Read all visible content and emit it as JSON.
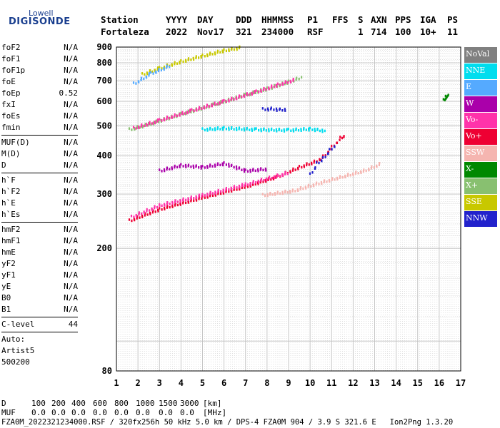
{
  "logo": {
    "line1": "Lowell",
    "line2": "DIGISONDE"
  },
  "header": {
    "labels": [
      "Station",
      "YYYY",
      "DAY",
      "DDD",
      "HHMMSS",
      "P1",
      "FFS",
      "S",
      "AXN",
      "PPS",
      "IGA",
      "PS"
    ],
    "values": [
      "Fortaleza",
      "2022",
      "Nov17",
      "321",
      "234000",
      "RSF",
      "",
      "1",
      "714",
      "100",
      "10+",
      "11"
    ]
  },
  "params": [
    [
      {
        "name": "foF2",
        "val": "N/A"
      },
      {
        "name": "foF1",
        "val": "N/A"
      },
      {
        "name": "foF1p",
        "val": "N/A"
      },
      {
        "name": "foE",
        "val": "N/A"
      },
      {
        "name": "foEp",
        "val": "0.52"
      },
      {
        "name": "fxI",
        "val": "N/A"
      },
      {
        "name": "foEs",
        "val": "N/A"
      },
      {
        "name": "fmin",
        "val": "N/A"
      }
    ],
    [
      {
        "name": "MUF(D)",
        "val": "N/A"
      },
      {
        "name": "M(D)",
        "val": "N/A"
      },
      {
        "name": "D",
        "val": "N/A"
      }
    ],
    [
      {
        "name": "h`F",
        "val": "N/A"
      },
      {
        "name": "h`F2",
        "val": "N/A"
      },
      {
        "name": "h`E",
        "val": "N/A"
      },
      {
        "name": "h`Es",
        "val": "N/A"
      }
    ],
    [
      {
        "name": "hmF2",
        "val": "N/A"
      },
      {
        "name": "hmF1",
        "val": "N/A"
      },
      {
        "name": "hmE",
        "val": "N/A"
      },
      {
        "name": "yF2",
        "val": "N/A"
      },
      {
        "name": "yF1",
        "val": "N/A"
      },
      {
        "name": "yE",
        "val": "N/A"
      },
      {
        "name": "B0",
        "val": "N/A"
      },
      {
        "name": "B1",
        "val": "N/A"
      }
    ],
    [
      {
        "name": "C-level",
        "val": "44"
      }
    ]
  ],
  "auto": {
    "l1": "Auto:",
    "l2": "Artist5",
    "l3": "500200"
  },
  "legend": [
    {
      "label": "NoVal",
      "color": "#808080"
    },
    {
      "label": "NNE",
      "color": "#00ddee"
    },
    {
      "label": "E",
      "color": "#55aaff"
    },
    {
      "label": "W",
      "color": "#aa00aa"
    },
    {
      "label": "Vo-",
      "color": "#ff33aa"
    },
    {
      "label": "Vo+",
      "color": "#ee0033"
    },
    {
      "label": "SSW",
      "color": "#f5b5b0"
    },
    {
      "label": "X-",
      "color": "#008800"
    },
    {
      "label": "X+",
      "color": "#88c070"
    },
    {
      "label": "SSE",
      "color": "#c8c800"
    },
    {
      "label": "NNW",
      "color": "#2222cc"
    }
  ],
  "chart_data": {
    "type": "scatter",
    "xlim": [
      1,
      17
    ],
    "ylim": [
      80,
      900
    ],
    "yscale": "log",
    "xticks": [
      "1",
      "2",
      "3",
      "4",
      "5",
      "6",
      "7",
      "8",
      "9",
      "10",
      "11",
      "12",
      "13",
      "14",
      "15",
      "16",
      "17"
    ],
    "yticks": [
      {
        "v": 80,
        "label": "80"
      },
      {
        "v": 200,
        "label": "200"
      },
      {
        "v": 300,
        "label": "300"
      },
      {
        "v": 400,
        "label": "400"
      },
      {
        "v": 500,
        "label": "500"
      },
      {
        "v": 600,
        "label": "600"
      },
      {
        "v": 700,
        "label": "700"
      },
      {
        "v": 800,
        "label": "800"
      },
      {
        "v": 900,
        "label": "900"
      }
    ],
    "traces": [
      {
        "color": "#ee0033",
        "pts": [
          [
            1.6,
            248
          ],
          [
            3,
            270
          ],
          [
            5,
            295
          ],
          [
            7,
            320
          ],
          [
            8.5,
            345
          ],
          [
            9.5,
            370
          ],
          [
            10.2,
            385
          ],
          [
            10.6,
            400
          ],
          [
            11,
            430
          ],
          [
            11.4,
            460
          ],
          [
            11.6,
            470
          ]
        ]
      },
      {
        "color": "#ff33aa",
        "pts": [
          [
            1.7,
            255
          ],
          [
            3,
            278
          ],
          [
            5,
            300
          ],
          [
            7,
            325
          ],
          [
            9,
            355
          ]
        ]
      },
      {
        "color": "#88c070",
        "pts": [
          [
            1.6,
            490
          ],
          [
            2.5,
            510
          ],
          [
            4,
            550
          ],
          [
            5.5,
            590
          ],
          [
            7,
            635
          ],
          [
            8,
            665
          ],
          [
            9,
            700
          ],
          [
            9.6,
            725
          ]
        ]
      },
      {
        "color": "#ff33aa",
        "pts": [
          [
            1.8,
            495
          ],
          [
            3,
            525
          ],
          [
            4.5,
            565
          ],
          [
            6,
            605
          ],
          [
            7.5,
            650
          ],
          [
            8.5,
            685
          ],
          [
            9.3,
            712
          ]
        ]
      },
      {
        "color": "#c8c800",
        "pts": [
          [
            2.2,
            740
          ],
          [
            3,
            775
          ],
          [
            4,
            815
          ],
          [
            5,
            850
          ],
          [
            6,
            885
          ],
          [
            6.8,
            905
          ]
        ]
      },
      {
        "color": "#55aaff",
        "pts": [
          [
            1.8,
            690
          ],
          [
            2.6,
            745
          ],
          [
            3.5,
            790
          ]
        ]
      },
      {
        "color": "#2222cc",
        "pts": [
          [
            10,
            350
          ],
          [
            10.3,
            380
          ],
          [
            10.6,
            395
          ],
          [
            10.9,
            420
          ],
          [
            11.2,
            440
          ]
        ]
      },
      {
        "color": "#f5b5b0",
        "pts": [
          [
            7.8,
            300
          ],
          [
            8.5,
            305
          ],
          [
            9.2,
            310
          ],
          [
            12.5,
            360
          ],
          [
            13.3,
            380
          ]
        ]
      },
      {
        "color": "#00ddee",
        "pts": [
          [
            5,
            490
          ],
          [
            6,
            495
          ],
          [
            7.5,
            490
          ],
          [
            9,
            488
          ],
          [
            10,
            492
          ],
          [
            10.7,
            485
          ]
        ]
      },
      {
        "color": "#aa00aa",
        "pts": [
          [
            3,
            360
          ],
          [
            4,
            375
          ],
          [
            5,
            370
          ],
          [
            6,
            380
          ],
          [
            7,
            360
          ],
          [
            8,
            365
          ]
        ]
      },
      {
        "color": "#2222cc",
        "pts": [
          [
            7.8,
            570
          ],
          [
            8.2,
            572
          ],
          [
            8.6,
            568
          ],
          [
            8.9,
            570
          ]
        ]
      },
      {
        "color": "#008800",
        "pts": [
          [
            16.2,
            610
          ],
          [
            16.3,
            625
          ],
          [
            16.4,
            640
          ]
        ]
      }
    ]
  },
  "footer": {
    "d_label": "D",
    "d_vals": [
      "100",
      "200",
      "400",
      "600",
      "800",
      "1000",
      "1500",
      "3000",
      "[km]"
    ],
    "muf_label": "MUF",
    "muf_vals": [
      "0.0",
      "0.0",
      "0.0",
      "0.0",
      "0.0",
      "0.0",
      "0.0",
      "0.0",
      "[MHz]"
    ],
    "info": "FZA0M_2022321234000.RSF / 320fx256h 50 kHz 5.0 km / DPS-4 FZA0M 904 / 3.9 S 321.6 E   Ion2Png 1.3.20"
  }
}
